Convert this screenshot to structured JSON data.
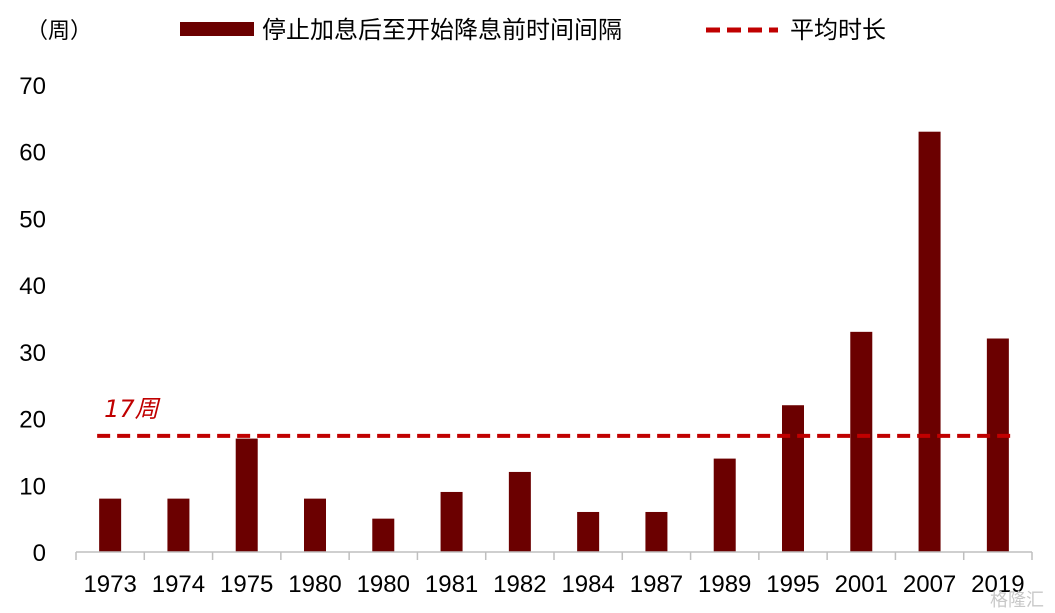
{
  "chart_data": {
    "type": "bar",
    "y_unit_label": "（周）",
    "categories": [
      "1973",
      "1974",
      "1975",
      "1980",
      "1980",
      "1981",
      "1982",
      "1984",
      "1987",
      "1989",
      "1995",
      "2001",
      "2007",
      "2019"
    ],
    "series": [
      {
        "name": "停止加息后至开始降息前时间间隔",
        "values": [
          8,
          8,
          17,
          8,
          5,
          9,
          12,
          6,
          6,
          14,
          22,
          33,
          63,
          32
        ],
        "color": "#6b0000"
      }
    ],
    "reference_line": {
      "name": "平均时长",
      "value": 17.4,
      "label": "17周",
      "color": "#c00000",
      "style": "dashed"
    },
    "ylim": [
      0,
      70
    ],
    "yticks": [
      0,
      10,
      20,
      30,
      40,
      50,
      60,
      70
    ],
    "grid": false,
    "legend_position": "top"
  },
  "watermark": "格隆汇"
}
